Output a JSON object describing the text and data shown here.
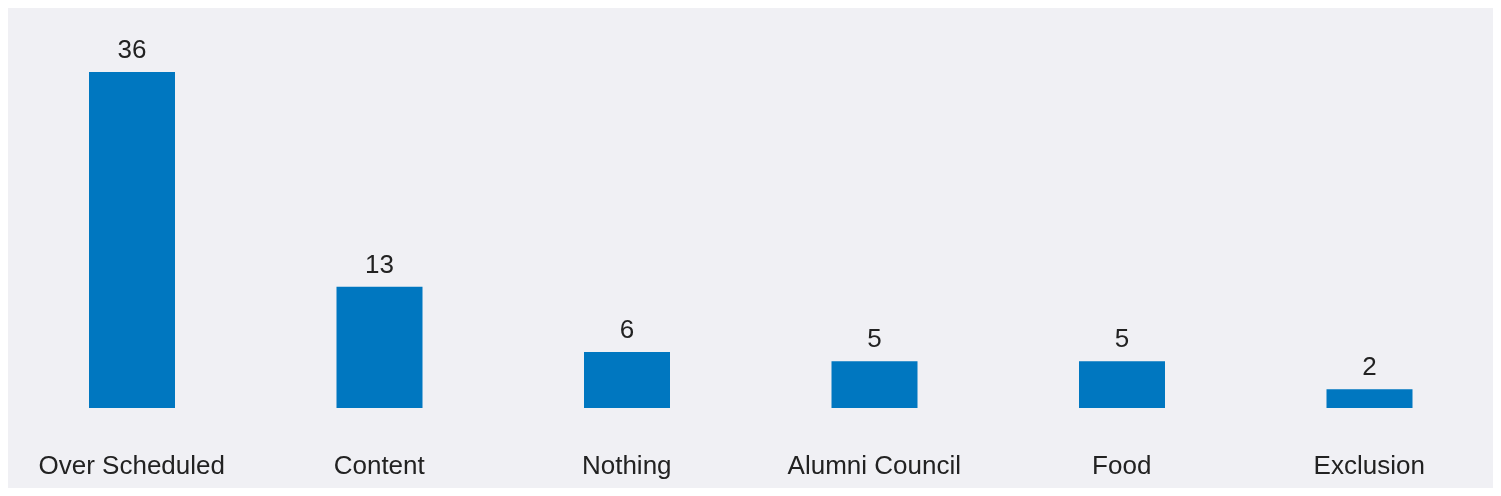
{
  "chart_data": {
    "type": "bar",
    "categories": [
      "Over Scheduled",
      "Content",
      "Nothing",
      "Alumni Council",
      "Food",
      "Exclusion"
    ],
    "values": [
      36,
      13,
      6,
      5,
      5,
      2
    ],
    "color": "#0077c0",
    "data_labels": true
  }
}
